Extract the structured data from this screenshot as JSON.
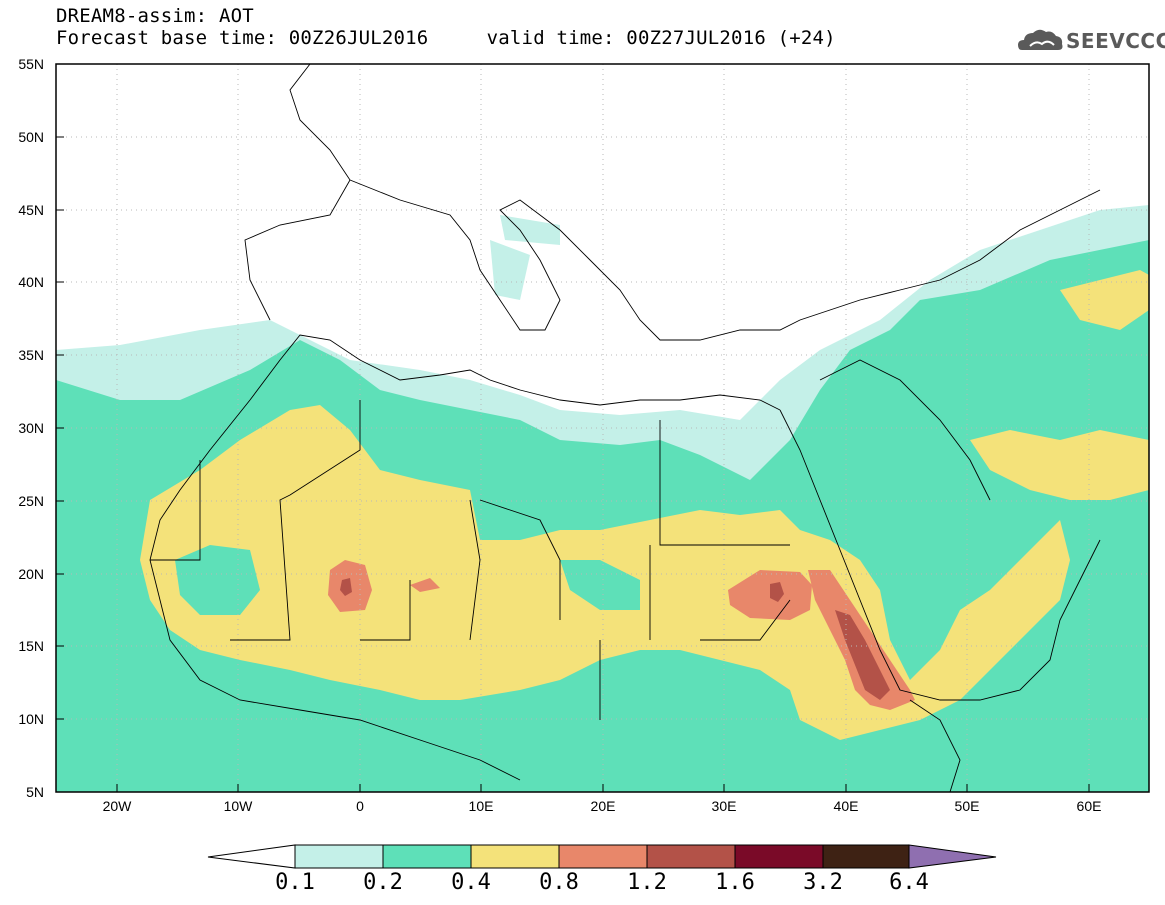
{
  "header": {
    "title": "DREAM8-assim: AOT",
    "subtitle": "Forecast base time: 00Z26JUL2016     valid time: 00Z27JUL2016 (+24)"
  },
  "logo": {
    "text": "SEEVCCC",
    "icon": "cloud-icon"
  },
  "map": {
    "lat_labels": [
      "55N",
      "50N",
      "45N",
      "40N",
      "35N",
      "30N",
      "25N",
      "20N",
      "15N",
      "10N",
      "5N"
    ],
    "lon_labels": [
      "20W",
      "10W",
      "0",
      "10E",
      "20E",
      "30E",
      "40E",
      "50E",
      "60E"
    ],
    "lat_range": [
      5,
      55
    ],
    "lon_range": [
      -25,
      65
    ],
    "grid": "dotted"
  },
  "colorbar": {
    "ticks": [
      "0.1",
      "0.2",
      "0.4",
      "0.8",
      "1.2",
      "1.6",
      "3.2",
      "6.4"
    ],
    "colors": [
      "#ffffff",
      "#c4f0e8",
      "#5ee0b8",
      "#f4e27a",
      "#e8876a",
      "#b35248",
      "#7a0a28",
      "#3e2214",
      "#8f6fb0"
    ]
  },
  "colors": {
    "aot_0_1": "#c4f0e8",
    "aot_0_2": "#5ee0b8",
    "aot_0_4": "#f4e27a",
    "aot_0_8": "#e8876a",
    "aot_1_2": "#b35248"
  }
}
